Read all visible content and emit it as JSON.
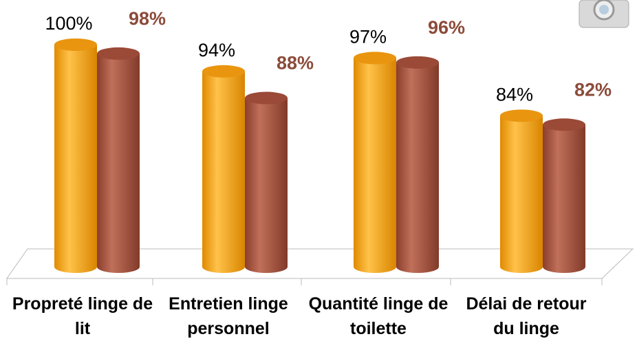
{
  "chart_data": {
    "type": "bar",
    "categories": [
      "Propreté linge de lit",
      "Entretien linge personnel",
      "Quantité linge de toilette",
      "Délai de retour du linge"
    ],
    "series": [
      {
        "color": "#f5a21e",
        "values": [
          100,
          94,
          97,
          84
        ],
        "value_labels": [
          "100%",
          "94%",
          "97%",
          "84%"
        ]
      },
      {
        "color": "#a3533f",
        "values": [
          98,
          88,
          96,
          82
        ],
        "value_labels": [
          "98%",
          "88%",
          "96%",
          "82%"
        ]
      }
    ],
    "ylim": [
      50,
      100
    ]
  }
}
